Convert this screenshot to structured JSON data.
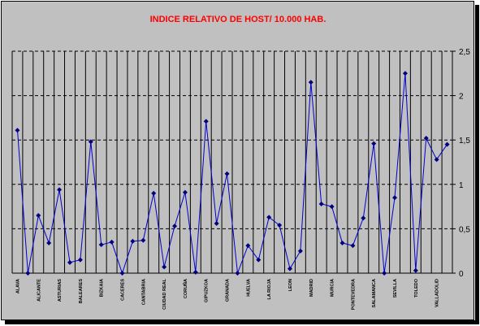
{
  "chart_data": {
    "type": "line",
    "title": "INDICE RELATIVO DE HOST/ 10.000 HAB.",
    "xlabel": "",
    "ylabel": "",
    "ylim": [
      0,
      2.5
    ],
    "y_ticks": [
      "0",
      "0,5",
      "1",
      "1,5",
      "2",
      "2,5"
    ],
    "grid": "dashed horizontal lines at 0.5 intervals, vertical line per category",
    "x_tick_labels": [
      {
        "index": 0,
        "label": "ALAVA"
      },
      {
        "index": 2,
        "label": "ALICANTE"
      },
      {
        "index": 4,
        "label": "ASTURIAS"
      },
      {
        "index": 6,
        "label": "BALEARES"
      },
      {
        "index": 8,
        "label": "BIZKAIA"
      },
      {
        "index": 10,
        "label": "CACERES"
      },
      {
        "index": 12,
        "label": "CANTABRIA"
      },
      {
        "index": 14,
        "label": "CIUDAD REAL"
      },
      {
        "index": 16,
        "label": "CORUÑA"
      },
      {
        "index": 18,
        "label": "GIPUZKOA"
      },
      {
        "index": 20,
        "label": "GRANADA"
      },
      {
        "index": 22,
        "label": "HUELVA"
      },
      {
        "index": 24,
        "label": "LA RIOJA"
      },
      {
        "index": 26,
        "label": "LEON"
      },
      {
        "index": 28,
        "label": "MADRID"
      },
      {
        "index": 30,
        "label": "MURCIA"
      },
      {
        "index": 32,
        "label": "PONTEVEDRA"
      },
      {
        "index": 34,
        "label": "SALAMANCA"
      },
      {
        "index": 36,
        "label": "SEVILLA"
      },
      {
        "index": 38,
        "label": "TOLEDO"
      },
      {
        "index": 40,
        "label": "VALLADOLID"
      }
    ],
    "series": [
      {
        "values": [
          1.61,
          0.0,
          0.65,
          0.34,
          0.94,
          0.12,
          0.15,
          1.48,
          0.32,
          0.35,
          0.0,
          0.36,
          0.37,
          0.9,
          0.07,
          0.53,
          0.91,
          0.01,
          1.71,
          0.56,
          1.12,
          0.0,
          0.31,
          0.15,
          0.63,
          0.54,
          0.05,
          0.25,
          2.15,
          0.78,
          0.75,
          0.34,
          0.31,
          0.62,
          1.46,
          0.0,
          0.85,
          2.25,
          0.03,
          1.52,
          1.28,
          1.45
        ]
      }
    ],
    "colors": {
      "line": "#0000cc",
      "marker": "#000080",
      "title": "#ff0000",
      "plot_bg": "#c0c0c0",
      "gridline": "#000000"
    }
  }
}
